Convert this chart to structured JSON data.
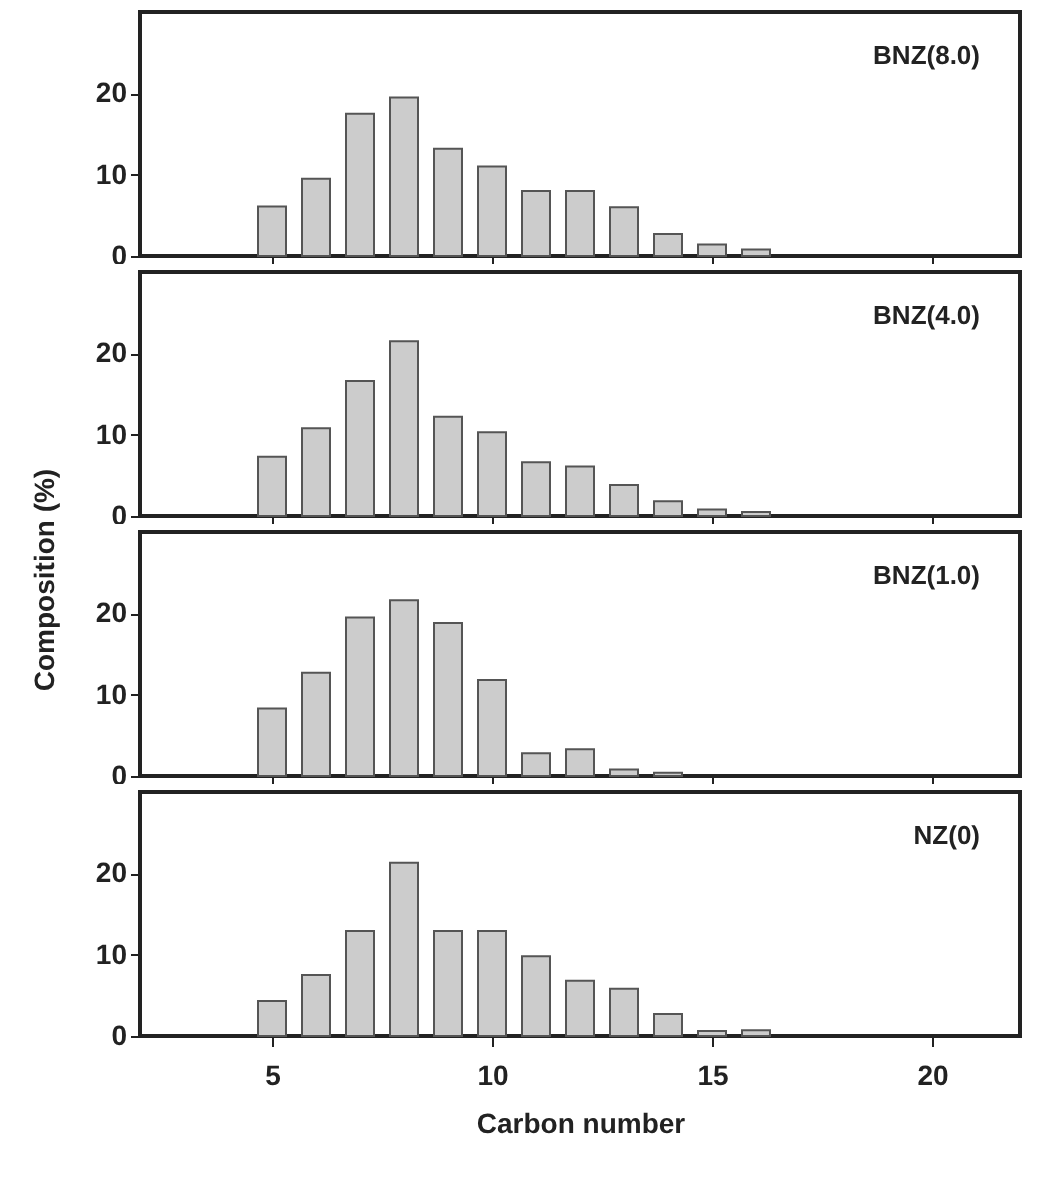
{
  "chart_data": [
    {
      "type": "bar",
      "x": [
        5,
        6,
        7,
        8,
        9,
        10,
        11,
        12,
        13,
        14,
        15,
        16
      ],
      "values": [
        6.1,
        9.5,
        17.5,
        19.5,
        13.2,
        11,
        8,
        8,
        6,
        2.7,
        1.4,
        0.8
      ],
      "color": "#cccccc",
      "annotations": [
        "BNZ(8.0)"
      ],
      "xlim": [
        2,
        22
      ],
      "xticks": [
        5,
        10,
        15,
        20
      ],
      "ylim": [
        0,
        30
      ],
      "yticks": [
        0,
        10,
        20
      ],
      "tick_labels": "y"
    },
    {
      "type": "bar",
      "x": [
        5,
        6,
        7,
        8,
        9,
        10,
        11,
        12,
        13,
        14,
        15,
        16
      ],
      "values": [
        7.3,
        10.8,
        16.6,
        21.5,
        12.2,
        10.3,
        6.6,
        6.1,
        3.8,
        1.8,
        0.8,
        0.5
      ],
      "color": "#cccccc",
      "annotations": [
        "BNZ(4.0)"
      ],
      "xlim": [
        2,
        22
      ],
      "xticks": [
        5,
        10,
        15,
        20
      ],
      "ylim": [
        0,
        30
      ],
      "yticks": [
        0,
        10,
        20
      ],
      "tick_labels": "y",
      "ylabel": "Composition (%)"
    },
    {
      "type": "bar",
      "x": [
        5,
        6,
        7,
        8,
        9,
        10,
        11,
        12,
        13,
        14
      ],
      "values": [
        8.3,
        12.7,
        19.5,
        21.6,
        18.8,
        11.8,
        2.8,
        3.3,
        0.8,
        0.4
      ],
      "color": "#cccccc",
      "annotations": [
        "BNZ(1.0)"
      ],
      "xlim": [
        2,
        22
      ],
      "xticks": [
        5,
        10,
        15,
        20
      ],
      "ylim": [
        0,
        30
      ],
      "yticks": [
        0,
        10,
        20
      ],
      "tick_labels": "y"
    },
    {
      "type": "bar",
      "x": [
        5,
        6,
        7,
        8,
        9,
        10,
        11,
        12,
        13,
        14,
        15,
        16
      ],
      "values": [
        4.3,
        7.5,
        12.9,
        21.3,
        12.9,
        12.9,
        9.8,
        6.8,
        5.8,
        2.7,
        0.6,
        0.7
      ],
      "color": "#cccccc",
      "annotations": [
        "NZ(0)"
      ],
      "xlim": [
        2,
        22
      ],
      "xticks": [
        5,
        10,
        15,
        20
      ],
      "ylim": [
        0,
        30
      ],
      "yticks": [
        0,
        10,
        20
      ],
      "xlabel": "Carbon number"
    }
  ]
}
